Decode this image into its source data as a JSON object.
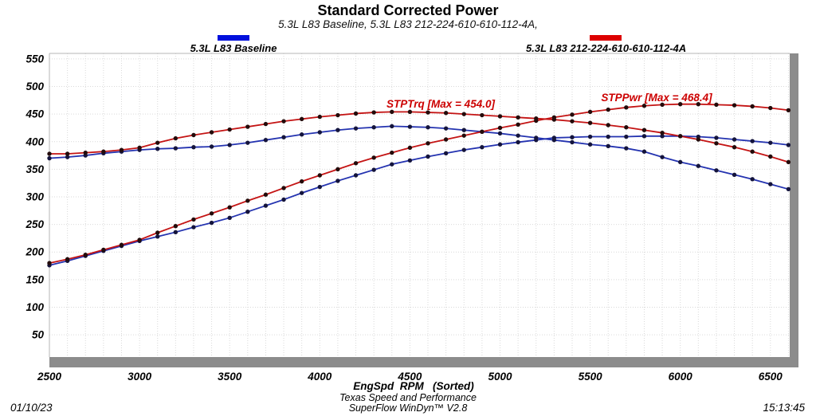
{
  "header": {
    "title": "Standard Corrected Power",
    "subtitle": "5.3L L83 Baseline, 5.3L L83 212-224-610-610-112-4A,"
  },
  "legend": [
    {
      "label": "5.3L L83 Baseline",
      "color": "#0010dd"
    },
    {
      "label": "5.3L L83 212-224-610-610-112-4A",
      "color": "#dd0000"
    }
  ],
  "chart_data": {
    "type": "line",
    "title": "Standard Corrected Power",
    "xlabel": "EngSpd  RPM   (Sorted)",
    "ylabel": "",
    "xlim": [
      2500,
      6630
    ],
    "ylim": [
      0,
      560
    ],
    "grid": true,
    "legend_position": "top",
    "x_ticks": [
      2500,
      3000,
      3500,
      4000,
      4500,
      5000,
      5500,
      6000,
      6500
    ],
    "y_ticks": [
      50,
      100,
      150,
      200,
      250,
      300,
      350,
      400,
      450,
      500,
      550
    ],
    "x": [
      2500,
      2600,
      2700,
      2800,
      2900,
      3000,
      3100,
      3200,
      3300,
      3400,
      3500,
      3600,
      3700,
      3800,
      3900,
      4000,
      4100,
      4200,
      4300,
      4400,
      4500,
      4600,
      4700,
      4800,
      4900,
      5000,
      5100,
      5200,
      5300,
      5400,
      5500,
      5600,
      5700,
      5800,
      5900,
      6000,
      6100,
      6200,
      6300,
      6400,
      6500,
      6600
    ],
    "series": [
      {
        "name": "STPTrq (5.3L L83 Baseline)",
        "color": "#2433b0",
        "dot_color": "#14143c",
        "values": [
          370,
          372,
          375,
          379,
          382,
          385,
          387,
          388,
          390,
          391,
          394,
          398,
          403,
          408,
          413,
          417,
          421,
          424,
          426,
          428,
          427,
          426,
          424,
          421,
          418,
          415,
          411,
          407,
          403,
          399,
          395,
          392,
          388,
          382,
          372,
          363,
          356,
          348,
          340,
          332,
          323,
          314
        ]
      },
      {
        "name": "STPPwr (5.3L L83 Baseline)",
        "color": "#2433b0",
        "dot_color": "#14143c",
        "values": [
          176,
          184,
          193,
          202,
          211,
          220,
          228,
          236,
          245,
          253,
          262,
          273,
          284,
          295,
          307,
          318,
          329,
          339,
          349,
          359,
          366,
          373,
          379,
          385,
          390,
          395,
          399,
          403,
          407,
          408,
          409,
          409,
          409,
          410,
          410,
          410,
          409,
          407,
          404,
          401,
          398,
          394
        ]
      },
      {
        "name": "STPTrq (5.3L L83 212-224-610-610-112-4A)",
        "color": "#c41414",
        "dot_color": "#230b0b",
        "max": 454.0,
        "values": [
          378,
          378,
          380,
          382,
          385,
          389,
          398,
          406,
          412,
          417,
          422,
          427,
          432,
          437,
          441,
          445,
          448,
          451,
          453,
          454,
          454,
          453,
          452,
          450,
          448,
          446,
          444,
          442,
          440,
          437,
          434,
          430,
          426,
          421,
          416,
          410,
          404,
          397,
          390,
          382,
          373,
          363
        ]
      },
      {
        "name": "STPPwr (5.3L L83 212-224-610-610-112-4A)",
        "color": "#c41414",
        "dot_color": "#230b0b",
        "max": 468.4,
        "values": [
          180,
          187,
          195,
          204,
          213,
          222,
          235,
          247,
          259,
          270,
          281,
          293,
          304,
          316,
          328,
          339,
          350,
          361,
          371,
          380,
          389,
          397,
          404,
          411,
          418,
          425,
          431,
          438,
          444,
          449,
          454,
          458,
          462,
          465,
          467,
          468,
          468,
          467,
          466,
          464,
          461,
          457
        ]
      }
    ],
    "annotations": [
      {
        "text": "STPTrq [Max = 454.0]",
        "color": "#cc0000"
      },
      {
        "text": "STPPwr [Max = 468.4]",
        "color": "#cc0000"
      }
    ]
  },
  "footer": {
    "date": "01/10/23",
    "center_line1": "Texas Speed and Performance",
    "center_line2": "SuperFlow WinDyn™ V2.8",
    "time": "15:13:45"
  }
}
